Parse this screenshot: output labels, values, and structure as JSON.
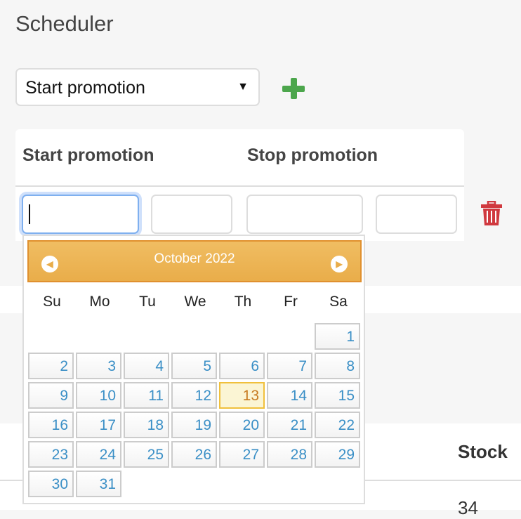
{
  "title": "Scheduler",
  "select": {
    "value": "Start promotion"
  },
  "table": {
    "headers": [
      "Start promotion",
      "Stop promotion"
    ],
    "stock_header": "Stock",
    "stock_value": "34"
  },
  "calendar": {
    "month": "October 2022",
    "weekdays": [
      "Su",
      "Mo",
      "Tu",
      "We",
      "Th",
      "Fr",
      "Sa"
    ],
    "first_weekday_offset": 6,
    "days": 31,
    "today": 13
  },
  "colors": {
    "accent": "#e9ad4a",
    "add": "#4ca64c",
    "delete": "#d0393f",
    "link": "#3a8fc6"
  }
}
